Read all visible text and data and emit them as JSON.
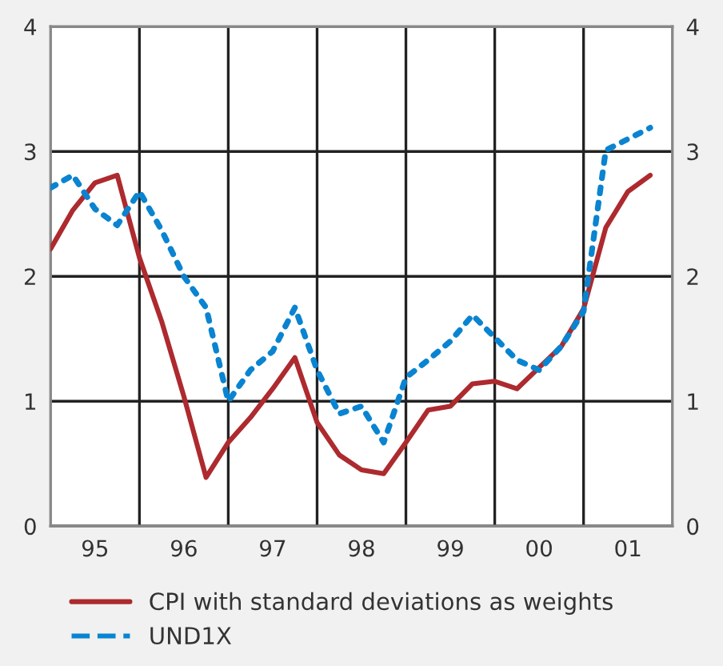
{
  "chart_data": {
    "type": "line",
    "categories": [
      null,
      null,
      "95",
      null,
      null,
      null,
      "96",
      null,
      null,
      null,
      "97",
      null,
      null,
      null,
      "98",
      null,
      null,
      null,
      "99",
      null,
      null,
      null,
      "00",
      null,
      null,
      null,
      "01",
      null
    ],
    "series": [
      {
        "name": "CPI with standard deviations as weights",
        "color": "#ad2a2e",
        "line_style": "solid",
        "values": [
          2.22,
          2.53,
          2.75,
          2.81,
          2.15,
          1.64,
          1.04,
          0.39,
          0.67,
          0.87,
          1.1,
          1.35,
          0.83,
          0.57,
          0.45,
          0.42,
          0.67,
          0.93,
          0.96,
          1.14,
          1.16,
          1.1,
          1.27,
          1.44,
          1.74,
          2.39,
          2.68,
          2.81
        ]
      },
      {
        "name": "UND1X",
        "color": "#0a84d0",
        "line_style": "dotted",
        "values": [
          2.71,
          2.81,
          2.54,
          2.41,
          2.68,
          2.37,
          2.0,
          1.75,
          1.0,
          1.25,
          1.4,
          1.75,
          1.25,
          0.9,
          0.96,
          0.67,
          1.19,
          1.33,
          1.48,
          1.69,
          1.51,
          1.33,
          1.25,
          1.44,
          1.72,
          3.01,
          3.1,
          3.19
        ]
      }
    ],
    "ylim": [
      0,
      4
    ],
    "yticks": [
      0,
      1,
      2,
      3,
      4
    ],
    "y2lim": [
      0,
      4
    ],
    "y2ticks": [
      0,
      1,
      2,
      3,
      4
    ],
    "grid": true,
    "legend": "bottom",
    "marker": "none"
  }
}
